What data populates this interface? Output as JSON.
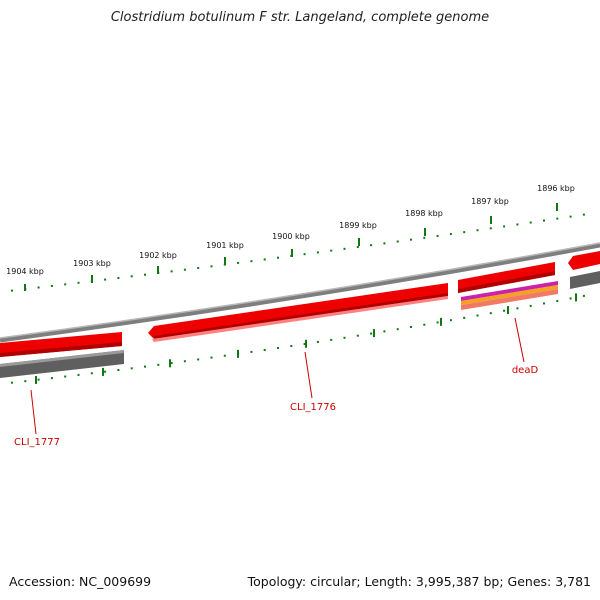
{
  "title": "Clostridium botulinum F str. Langeland, complete genome",
  "accession_text": "Accession: NC_009699",
  "topology_text": "Topology: circular; Length: 3,995,387 bp; Genes: 3,781",
  "kbp_labels": [
    "1904 kbp",
    "1903 kbp",
    "1902 kbp",
    "1901 kbp",
    "1900 kbp",
    "1899 kbp",
    "1898 kbp",
    "1897 kbp",
    "1896 kbp"
  ],
  "gene_labels": [
    "CLI_1777",
    "CLI_1776",
    "deaD"
  ],
  "colors": {
    "backbone": "#8a8a8a",
    "gene_forward": "#ee0000",
    "gene_reverse": "#606060",
    "tick": "#117711",
    "label": "#cc0000",
    "feature_magenta": "#cc22aa",
    "feature_orange": "#f5a020"
  }
}
